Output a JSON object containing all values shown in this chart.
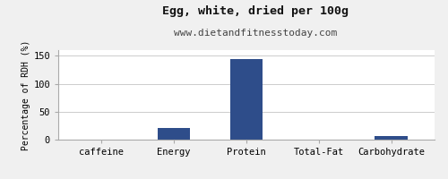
{
  "title": "Egg, white, dried per 100g",
  "subtitle": "www.dietandfitnesstoday.com",
  "categories": [
    "caffeine",
    "Energy",
    "Protein",
    "Total-Fat",
    "Carbohydrate"
  ],
  "values": [
    0,
    21,
    144,
    0,
    7
  ],
  "bar_color": "#2e4d8a",
  "ylabel": "Percentage of RDH (%)",
  "ylim": [
    0,
    160
  ],
  "yticks": [
    0,
    50,
    100,
    150
  ],
  "background_color": "#f0f0f0",
  "plot_background": "#ffffff",
  "title_fontsize": 9.5,
  "subtitle_fontsize": 8,
  "ylabel_fontsize": 7,
  "tick_fontsize": 7.5,
  "bar_width": 0.45
}
